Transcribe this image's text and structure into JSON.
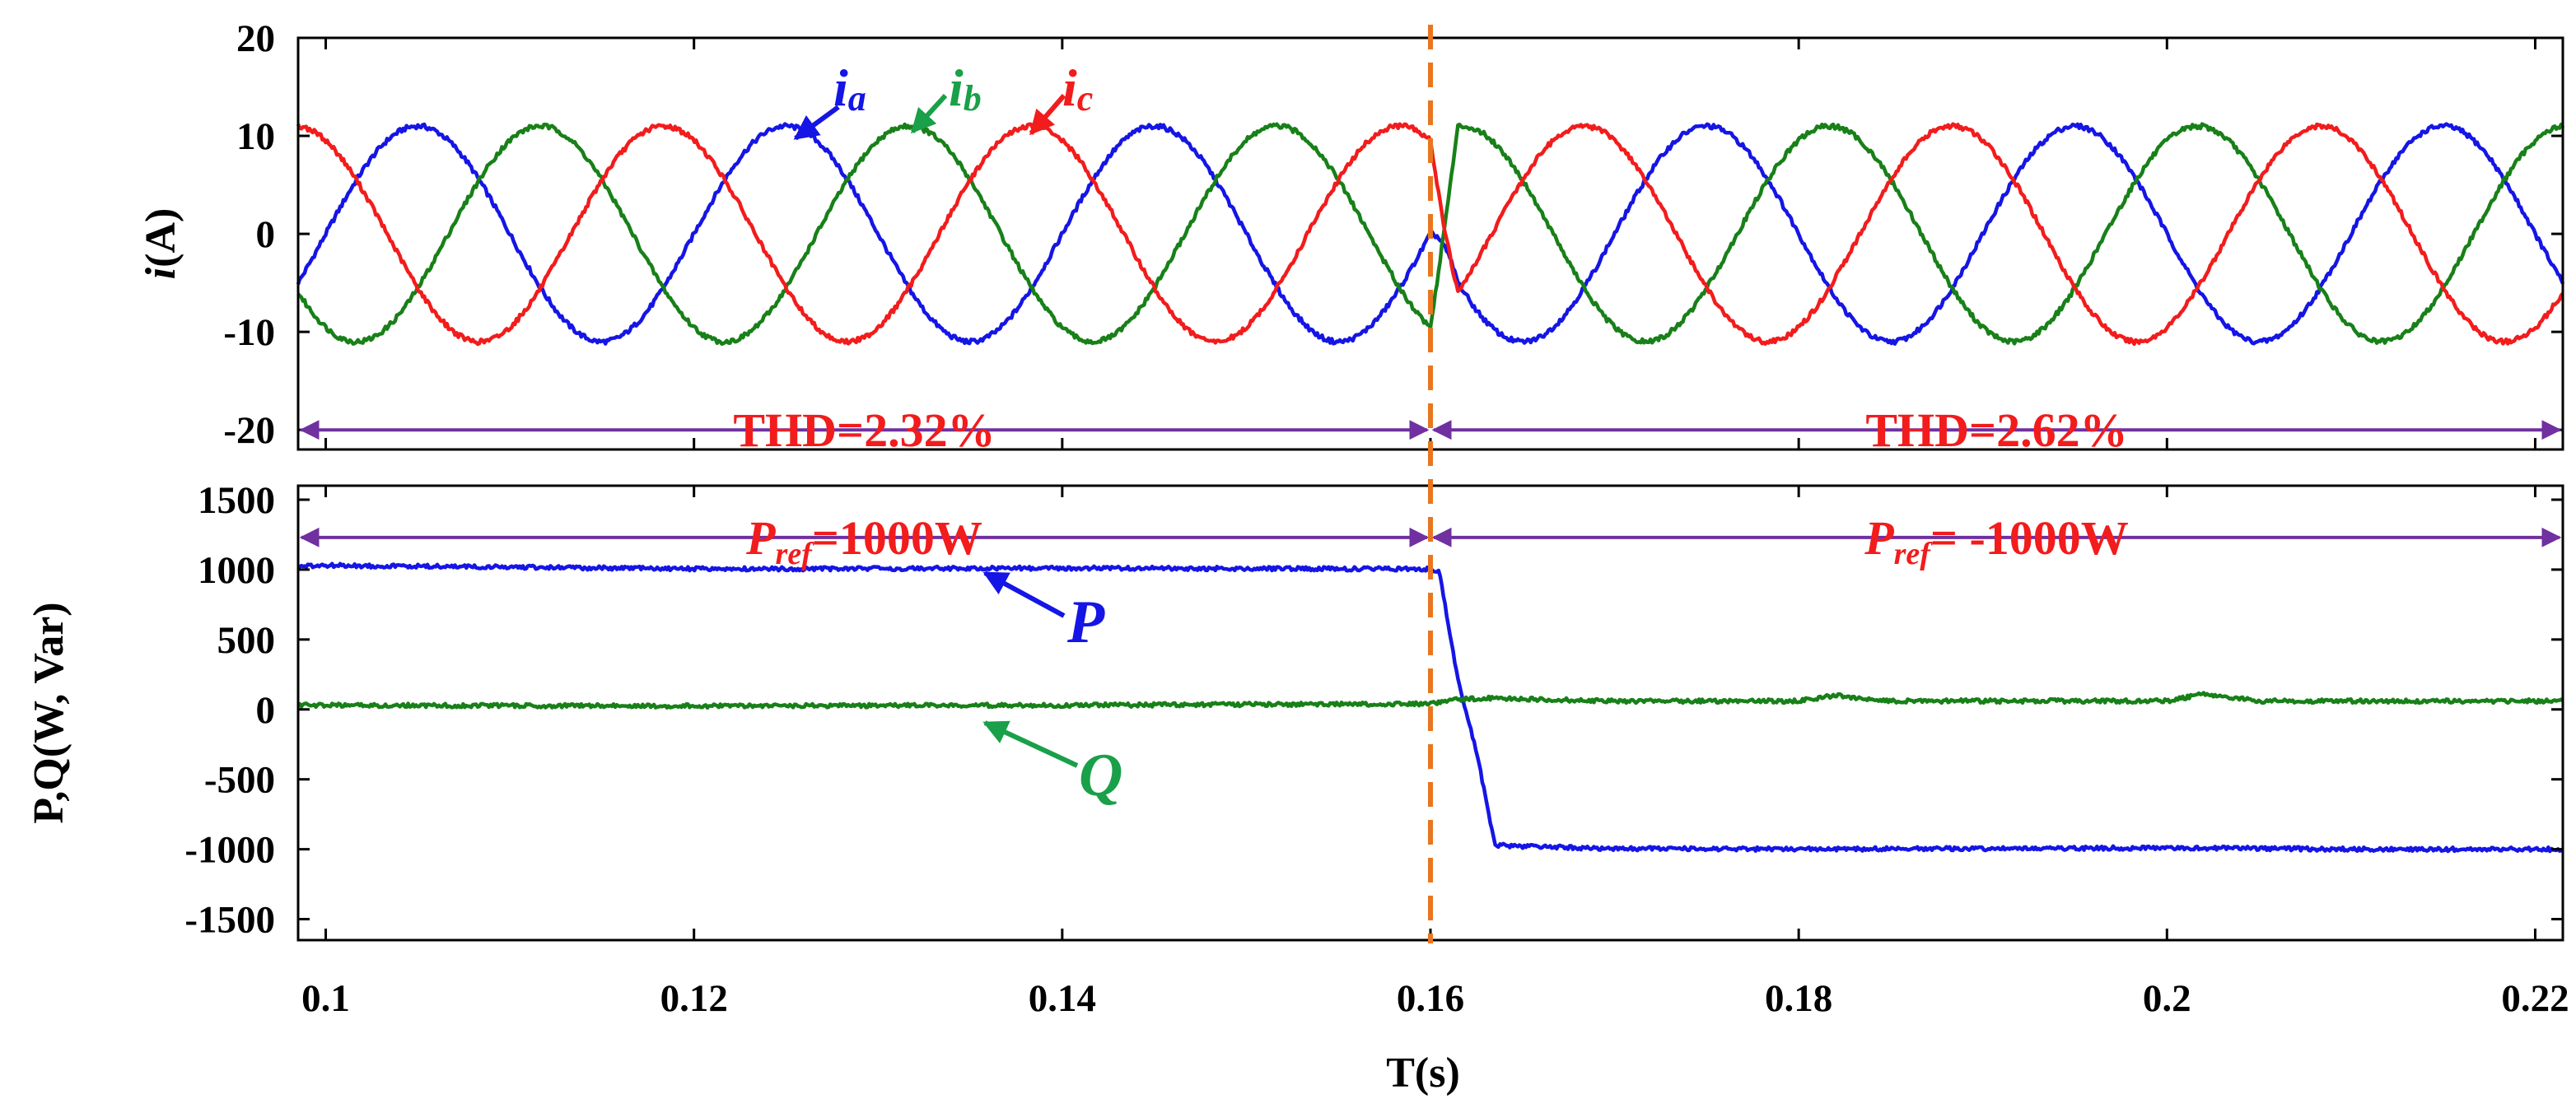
{
  "chart_data": {
    "type": "line",
    "xlabel": "T(s)",
    "x_range": [
      0.0985,
      0.2215
    ],
    "x_ticks": [
      {
        "value": 0.1,
        "label": "0.1"
      },
      {
        "value": 0.12,
        "label": "0.12"
      },
      {
        "value": 0.14,
        "label": "0.14"
      },
      {
        "value": 0.16,
        "label": "0.16"
      },
      {
        "value": 0.18,
        "label": "0.18"
      },
      {
        "value": 0.2,
        "label": "0.2"
      },
      {
        "value": 0.22,
        "label": "0.22"
      }
    ],
    "event_marker": {
      "x": 0.16,
      "color": "#E9761F",
      "style": "dashed"
    },
    "panels": [
      {
        "id": "current",
        "ylabel": "i(A)",
        "ylabel_main": "i",
        "ylabel_unit": "(A)",
        "ylim": [
          -22,
          20
        ],
        "y_ticks": [
          {
            "value": 20,
            "label": "20"
          },
          {
            "value": 10,
            "label": "10"
          },
          {
            "value": 0,
            "label": "0"
          },
          {
            "value": -10,
            "label": "-10"
          },
          {
            "value": -20,
            "label": "-20"
          }
        ],
        "frequency_hz": 50,
        "series": [
          {
            "name": "ia",
            "label_main": "i",
            "label_sub": "a",
            "color": "#1515E5",
            "amplitude": 11,
            "phase_deg": 0
          },
          {
            "name": "ib",
            "label_main": "i",
            "label_sub": "b",
            "color": "#188018",
            "amplitude": 11,
            "phase_deg": -120
          },
          {
            "name": "ic",
            "label_main": "i",
            "label_sub": "c",
            "color": "#F21C1C",
            "amplitude": 11,
            "phase_deg": 120
          }
        ],
        "transition": {
          "at": 0.16,
          "phase_shift_deg": 180,
          "settle_s": 0.0015
        },
        "annotations": [
          {
            "text": "THD=2.32%",
            "x_from": 0.0985,
            "x_to": 0.16,
            "y": -20,
            "color": "#F21C1C"
          },
          {
            "text": "THD=2.62%",
            "x_from": 0.16,
            "x_to": 0.2215,
            "y": -20,
            "color": "#F21C1C"
          }
        ]
      },
      {
        "id": "power",
        "ylabel": "P,Q(W, Var)",
        "ylim": [
          -1650,
          1600
        ],
        "y_ticks": [
          {
            "value": 1500,
            "label": "1500"
          },
          {
            "value": 1000,
            "label": "1000"
          },
          {
            "value": 500,
            "label": "500"
          },
          {
            "value": 0,
            "label": "0"
          },
          {
            "value": -500,
            "label": "-500"
          },
          {
            "value": -1000,
            "label": "-1000"
          },
          {
            "value": -1500,
            "label": "-1500"
          }
        ],
        "series": [
          {
            "name": "P",
            "color": "#1515E5",
            "points": [
              [
                0.0985,
                1020
              ],
              [
                0.1,
                1030
              ],
              [
                0.12,
                1005
              ],
              [
                0.14,
                1010
              ],
              [
                0.16,
                1005
              ],
              [
                0.1605,
                980
              ],
              [
                0.1615,
                200
              ],
              [
                0.1625,
                -300
              ],
              [
                0.1635,
                -970
              ],
              [
                0.165,
                -980
              ],
              [
                0.17,
                -995
              ],
              [
                0.18,
                -1000
              ],
              [
                0.19,
                -995
              ],
              [
                0.2,
                -990
              ],
              [
                0.21,
                -1000
              ],
              [
                0.2215,
                -1000
              ]
            ]
          },
          {
            "name": "Q",
            "color": "#188018",
            "points": [
              [
                0.0985,
                30
              ],
              [
                0.12,
                25
              ],
              [
                0.14,
                30
              ],
              [
                0.16,
                40
              ],
              [
                0.1615,
                70
              ],
              [
                0.163,
                80
              ],
              [
                0.17,
                60
              ],
              [
                0.18,
                60
              ],
              [
                0.182,
                100
              ],
              [
                0.185,
                60
              ],
              [
                0.2,
                60
              ],
              [
                0.202,
                110
              ],
              [
                0.205,
                60
              ],
              [
                0.2215,
                60
              ]
            ]
          }
        ],
        "annotations": [
          {
            "main": "P",
            "sub": "ref",
            "rest": "=1000W",
            "x_from": 0.0985,
            "x_to": 0.16,
            "y": 1230,
            "color": "#F21C1C"
          },
          {
            "main": "P",
            "sub": "ref",
            "rest": "= -1000W",
            "x_from": 0.16,
            "x_to": 0.2215,
            "y": 1230,
            "color": "#F21C1C"
          }
        ]
      }
    ]
  }
}
